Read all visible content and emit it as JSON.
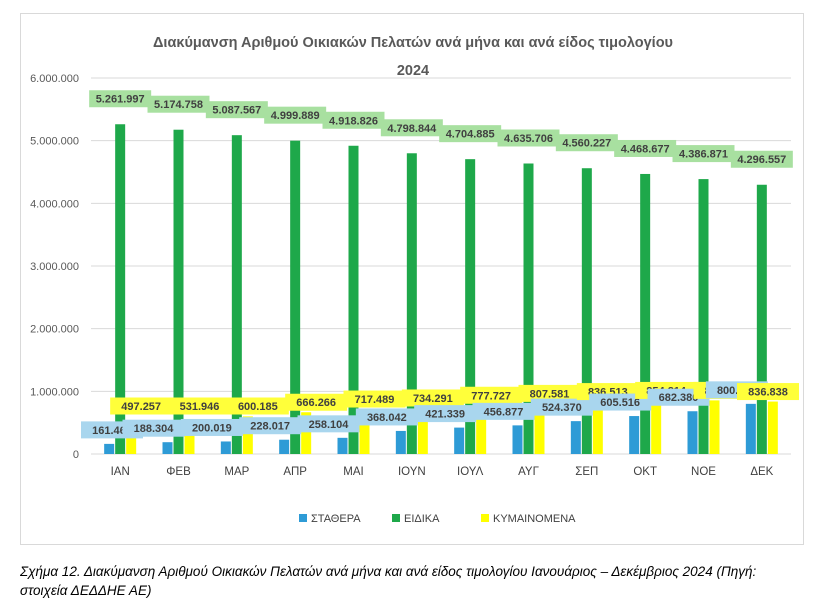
{
  "chart_data": {
    "type": "bar",
    "title": "Διακύμανση Αριθμού Οικιακών Πελατών ανά μήνα και ανά είδος τιμολογίου",
    "subtitle": "2024",
    "categories": [
      "ΙΑΝ",
      "ΦΕΒ",
      "ΜΑΡ",
      "ΑΠΡ",
      "ΜΑΙ",
      "ΙΟΥΝ",
      "ΙΟΥΛ",
      "ΑΥΓ",
      "ΣΕΠ",
      "ΟΚΤ",
      "ΝΟΕ",
      "ΔΕΚ"
    ],
    "series": [
      {
        "name": "ΣΤΑΘΕΡΑ",
        "color": "#2e9bd6",
        "label_bg": "#a9d6ee",
        "values": [
          161461,
          188304,
          200019,
          228017,
          258104,
          368042,
          421339,
          456877,
          524370,
          605516,
          682380,
          800265
        ],
        "labels": [
          "161.461",
          "188.304",
          "200.019",
          "228.017",
          "258.104",
          "368.042",
          "421.339",
          "456.877",
          "524.370",
          "605.516",
          "682.380",
          "800.265"
        ]
      },
      {
        "name": "ΕΙΔΙΚΑ",
        "color": "#1ea84a",
        "label_bg": "#a8e0a0",
        "values": [
          5261997,
          5174758,
          5087567,
          4999889,
          4918826,
          4798844,
          4704885,
          4635706,
          4560227,
          4468677,
          4386871,
          4296557
        ],
        "labels": [
          "5.261.997",
          "5.174.758",
          "5.087.567",
          "4.999.889",
          "4.918.826",
          "4.798.844",
          "4.704.885",
          "4.635.706",
          "4.560.227",
          "4.468.677",
          "4.386.871",
          "4.296.557"
        ]
      },
      {
        "name": "ΚΥΜΑΙΝΟΜΕΝΑ",
        "color": "#ffff00",
        "label_bg": "#ffff3a",
        "values": [
          497257,
          531946,
          600185,
          666266,
          717489,
          734291,
          777727,
          807581,
          836513,
          854814,
          855401,
          836838
        ],
        "labels": [
          "497.257",
          "531.946",
          "600.185",
          "666.266",
          "717.489",
          "734.291",
          "777.727",
          "807.581",
          "836.513",
          "854.814",
          "855.401",
          "836.838"
        ]
      }
    ],
    "yticks": [
      "0",
      "1.000.000",
      "2.000.000",
      "3.000.000",
      "4.000.000",
      "5.000.000",
      "6.000.000"
    ],
    "ylim": [
      0,
      6000000
    ],
    "grid": true,
    "legend": "bottom"
  },
  "caption": "Σχήμα 12. Διακύμανση Αριθμού Οικιακών Πελατών ανά μήνα και ανά είδος τιμολογίου Ιανουάριος – Δεκέμβριος 2024 (Πηγή: στοιχεία ΔΕΔΔΗΕ ΑΕ)"
}
